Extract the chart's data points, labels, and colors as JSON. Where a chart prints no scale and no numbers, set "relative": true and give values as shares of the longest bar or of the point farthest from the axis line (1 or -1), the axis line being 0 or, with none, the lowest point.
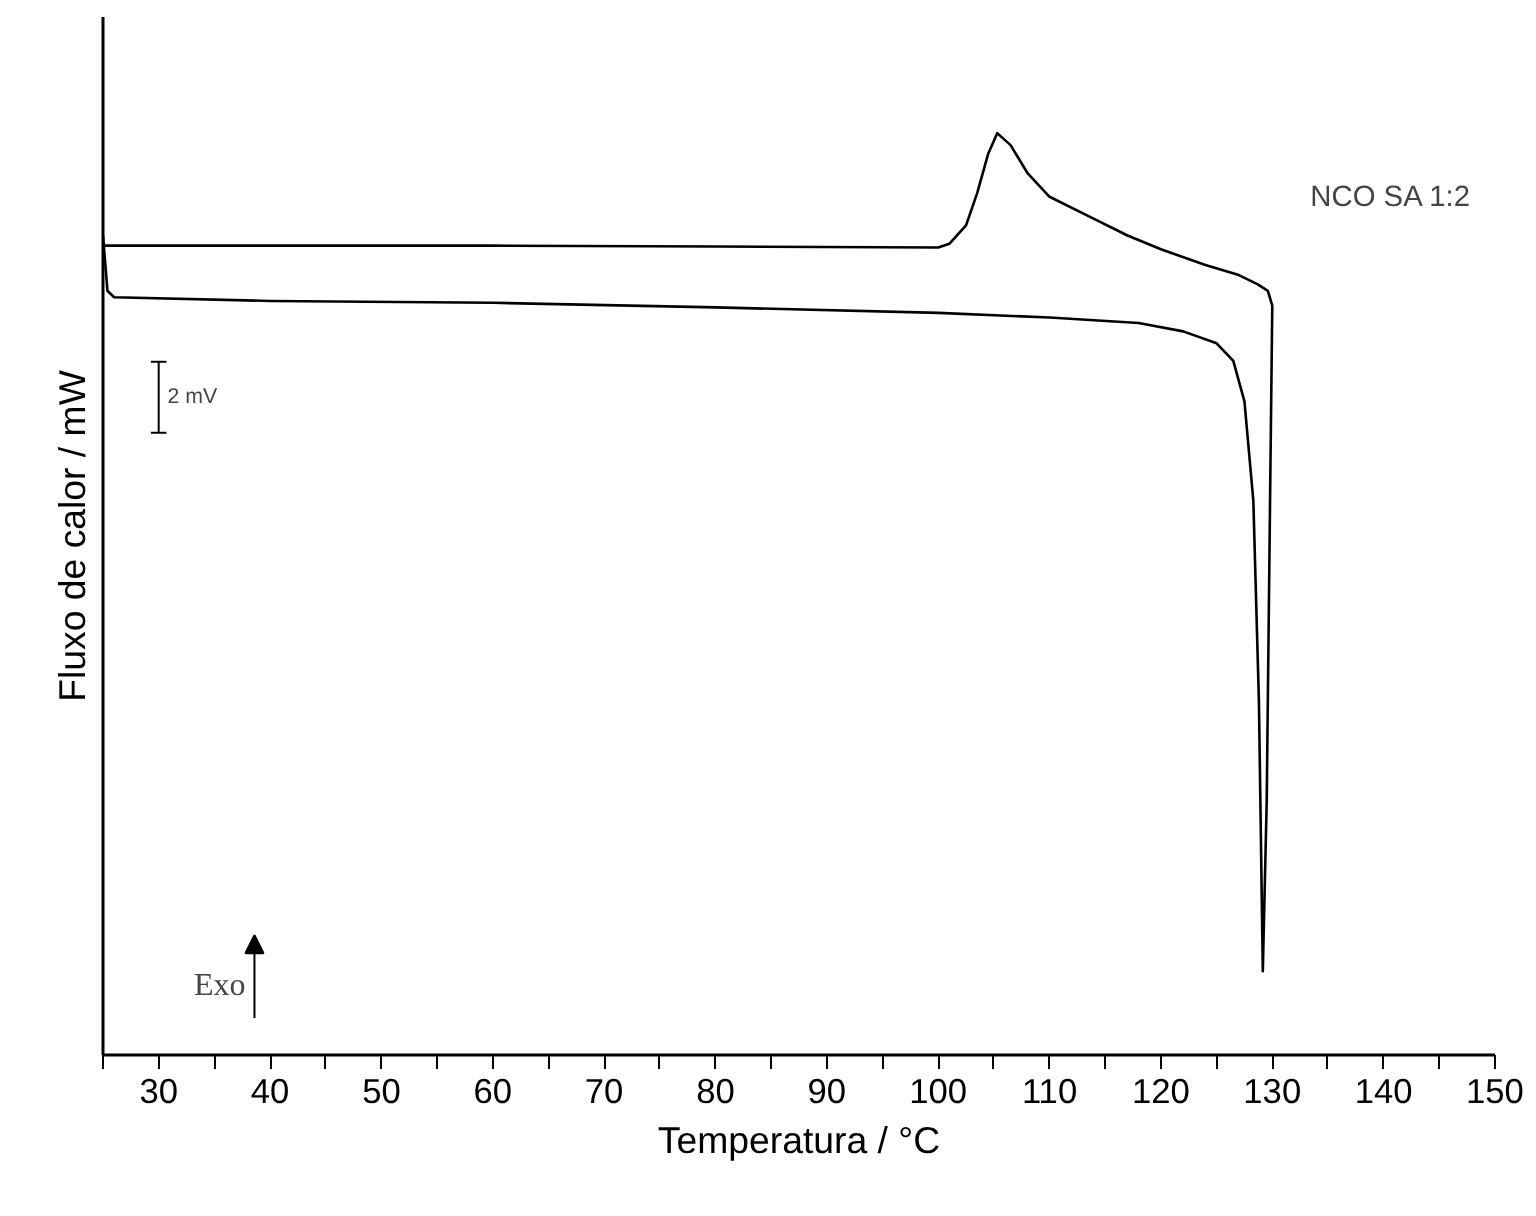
{
  "chart_data": {
    "type": "line",
    "xlabel": "Temperatura / °C",
    "ylabel": "Fluxo de calor / mW",
    "relative": true,
    "tick_labels": "x",
    "grid": false,
    "xlim": [
      25,
      150
    ],
    "xticks": [
      {
        "value": 25,
        "label": null
      },
      30,
      {
        "value": 35,
        "label": null
      },
      40,
      {
        "value": 45,
        "label": null
      },
      50,
      {
        "value": 55,
        "label": null
      },
      60,
      {
        "value": 65,
        "label": null
      },
      70,
      {
        "value": 75,
        "label": null
      },
      80,
      {
        "value": 85,
        "label": null
      },
      90,
      {
        "value": 95,
        "label": null
      },
      100,
      {
        "value": 105,
        "label": null
      },
      110,
      {
        "value": 115,
        "label": null
      },
      120,
      {
        "value": 125,
        "label": null
      },
      130,
      {
        "value": 135,
        "label": null
      },
      140,
      {
        "value": 145,
        "label": null
      },
      150
    ],
    "annotations": [
      "NCO SA 1:2",
      "2 mV",
      "Exo"
    ],
    "series": [
      {
        "color": "#000000",
        "x": [
          25,
          40,
          60,
          80,
          100,
          101,
          102.5,
          103.5,
          104.5,
          105.3,
          106.5,
          108,
          110,
          113,
          117,
          120,
          124,
          127,
          128.7,
          129.6,
          130,
          129.8,
          129.5,
          129.15,
          128.8,
          128.3,
          127.5,
          126.5,
          125,
          122,
          118,
          110,
          100,
          80,
          60,
          40,
          26,
          25.4,
          25
        ],
        "values": [
          0.878,
          0.878,
          0.878,
          0.877,
          0.876,
          0.88,
          0.9,
          0.935,
          0.978,
          1.0,
          0.987,
          0.957,
          0.931,
          0.913,
          0.889,
          0.874,
          0.857,
          0.846,
          0.836,
          0.829,
          0.813,
          0.601,
          0.275,
          0.091,
          0.384,
          0.601,
          0.709,
          0.753,
          0.772,
          0.785,
          0.794,
          0.8,
          0.805,
          0.811,
          0.816,
          0.818,
          0.822,
          0.829,
          0.889
        ]
      }
    ]
  }
}
